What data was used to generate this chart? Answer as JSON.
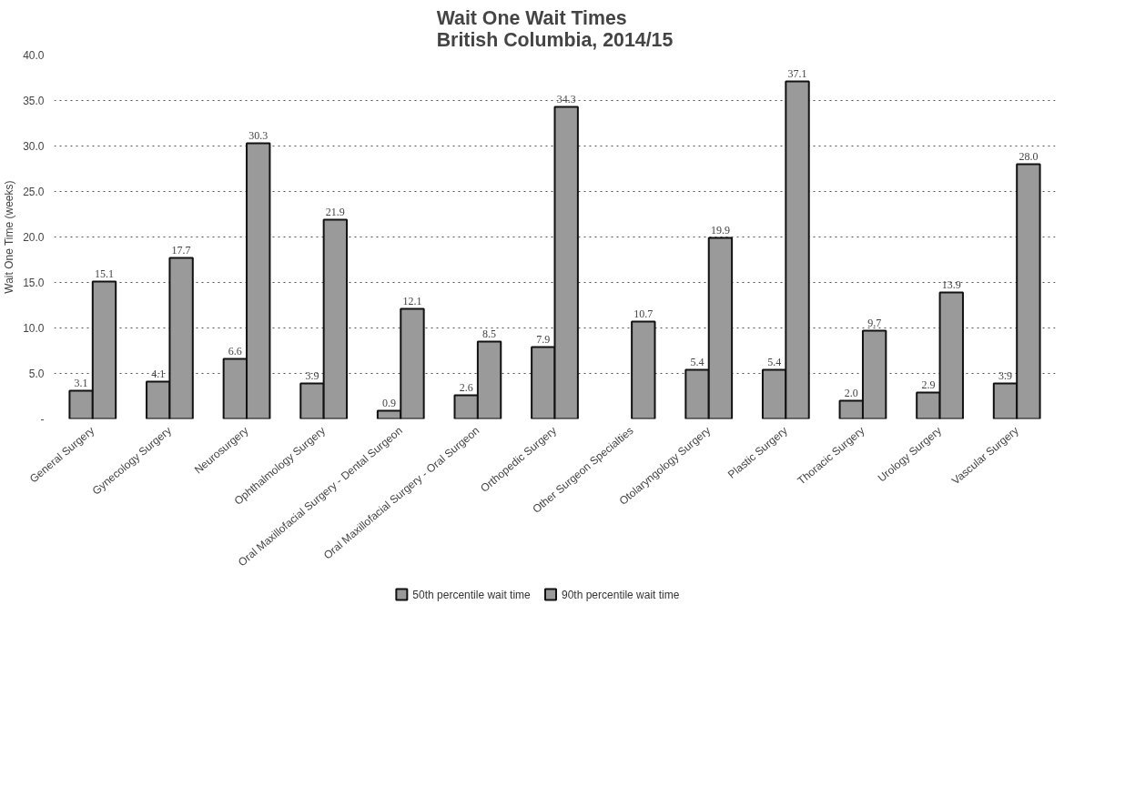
{
  "chart_data": {
    "type": "bar",
    "title": "Wait One Wait Times\nBritish Columbia, 2014/15",
    "ylabel": "Wait One Time (weeks)",
    "categories": [
      "General Surgery",
      "Gynecology Surgery",
      "Neurosurgery",
      "Ophthalmology Surgery",
      "Oral Maxillofacial Surgery - Dental Surgeon",
      "Oral Maxillofacial Surgery - Oral Surgeon",
      "Orthopedic Surgery",
      "Other Surgeon Specialties",
      "Otolaryngology Surgery",
      "Plastic Surgery",
      "Thoracic Surgery",
      "Urology Surgery",
      "Vascular Surgery"
    ],
    "series": [
      {
        "name": "50th percentile wait time",
        "color": "#9a9a9a",
        "values": [
          3.1,
          4.1,
          6.6,
          3.9,
          0.9,
          2.6,
          7.9,
          null,
          5.4,
          5.4,
          2.0,
          2.9,
          3.9
        ],
        "value_labels": [
          "3.1",
          "4.1",
          "6.6",
          "3.9",
          "0.9",
          "2.6",
          "7.9",
          null,
          "5.4",
          "5.4",
          "2.0",
          "2.9",
          "3.9"
        ]
      },
      {
        "name": "90th percentile wait time",
        "color": "#9a9a9a",
        "values": [
          15.1,
          17.7,
          30.3,
          21.9,
          12.1,
          8.5,
          34.3,
          10.7,
          19.9,
          37.1,
          9.7,
          13.9,
          28.0
        ],
        "value_labels": [
          "15.1",
          "17.7",
          "30.3",
          "21.9",
          "12.1",
          "8.5",
          "34.3",
          "10.7",
          "19.9",
          "37.1",
          "9.7",
          "13.9",
          "28.0"
        ]
      }
    ],
    "ylim": [
      0,
      40
    ],
    "yticks": [
      {
        "value": 0,
        "label": "-"
      },
      {
        "value": 5,
        "label": "5.0"
      },
      {
        "value": 10,
        "label": "10.0"
      },
      {
        "value": 15,
        "label": "15.0"
      },
      {
        "value": 20,
        "label": "20.0"
      },
      {
        "value": 25,
        "label": "25.0"
      },
      {
        "value": 30,
        "label": "30.0"
      },
      {
        "value": 35,
        "label": "35.0"
      },
      {
        "value": 40,
        "label": "40.0"
      }
    ],
    "grid": "y",
    "legend": "bottom"
  }
}
